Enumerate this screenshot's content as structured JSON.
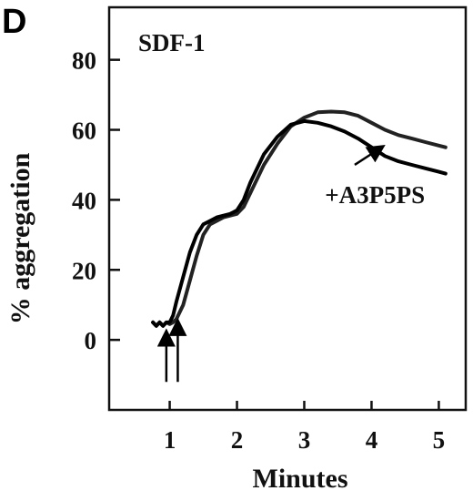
{
  "panel_label": "D",
  "chart_data": {
    "type": "line",
    "title": "SDF-1",
    "xlabel": "Minutes",
    "ylabel": "% aggregation",
    "xlim": [
      0.1,
      5.4
    ],
    "ylim": [
      -20,
      95
    ],
    "xticks": [
      1,
      2,
      3,
      4,
      5
    ],
    "yticks": [
      0,
      20,
      40,
      60,
      80
    ],
    "grid": false,
    "legend": "none",
    "series": [
      {
        "name": "",
        "color": "#222222",
        "points": [
          [
            0.75,
            5
          ],
          [
            0.8,
            4
          ],
          [
            0.85,
            5
          ],
          [
            0.9,
            4
          ],
          [
            0.95,
            5
          ],
          [
            1.0,
            4.5
          ],
          [
            1.05,
            5
          ],
          [
            1.1,
            6
          ],
          [
            1.2,
            10
          ],
          [
            1.3,
            17
          ],
          [
            1.4,
            24
          ],
          [
            1.5,
            30
          ],
          [
            1.6,
            33
          ],
          [
            1.7,
            34
          ],
          [
            1.8,
            35
          ],
          [
            1.9,
            35.5
          ],
          [
            2.0,
            36
          ],
          [
            2.1,
            38
          ],
          [
            2.2,
            42
          ],
          [
            2.4,
            50
          ],
          [
            2.6,
            56
          ],
          [
            2.8,
            61
          ],
          [
            3.0,
            63.5
          ],
          [
            3.2,
            65
          ],
          [
            3.4,
            65.2
          ],
          [
            3.6,
            65
          ],
          [
            3.8,
            64
          ],
          [
            4.0,
            62
          ],
          [
            4.2,
            60
          ],
          [
            4.4,
            58.5
          ],
          [
            4.6,
            57.5
          ],
          [
            4.8,
            56.5
          ],
          [
            5.0,
            55.5
          ],
          [
            5.1,
            55
          ]
        ]
      },
      {
        "name": "+A3P5PS",
        "color": "#000000",
        "points": [
          [
            0.75,
            5
          ],
          [
            0.8,
            4
          ],
          [
            0.85,
            5
          ],
          [
            0.9,
            4
          ],
          [
            0.95,
            5
          ],
          [
            1.0,
            5
          ],
          [
            1.05,
            7
          ],
          [
            1.1,
            11
          ],
          [
            1.2,
            18
          ],
          [
            1.3,
            25
          ],
          [
            1.4,
            30
          ],
          [
            1.5,
            33
          ],
          [
            1.6,
            34
          ],
          [
            1.7,
            35
          ],
          [
            1.8,
            35.5
          ],
          [
            1.9,
            36
          ],
          [
            2.0,
            37
          ],
          [
            2.1,
            40
          ],
          [
            2.2,
            45
          ],
          [
            2.4,
            53
          ],
          [
            2.6,
            58
          ],
          [
            2.8,
            61.5
          ],
          [
            3.0,
            62.5
          ],
          [
            3.2,
            62
          ],
          [
            3.4,
            61
          ],
          [
            3.6,
            59.5
          ],
          [
            3.8,
            57.5
          ],
          [
            4.0,
            55
          ],
          [
            4.2,
            52.5
          ],
          [
            4.4,
            51
          ],
          [
            4.6,
            50
          ],
          [
            4.8,
            49
          ],
          [
            5.0,
            48
          ],
          [
            5.1,
            47.5
          ]
        ]
      }
    ],
    "annotations": [
      {
        "text": "+A3P5PS",
        "x": 4.05,
        "y": 39
      },
      {
        "arrow_from": [
          3.75,
          50
        ],
        "arrow_to": [
          4.15,
          55
        ]
      },
      {
        "arrow_from": [
          0.95,
          -12
        ],
        "arrow_to": [
          0.95,
          2
        ]
      },
      {
        "arrow_from": [
          1.12,
          -12
        ],
        "arrow_to": [
          1.12,
          5
        ]
      }
    ]
  }
}
